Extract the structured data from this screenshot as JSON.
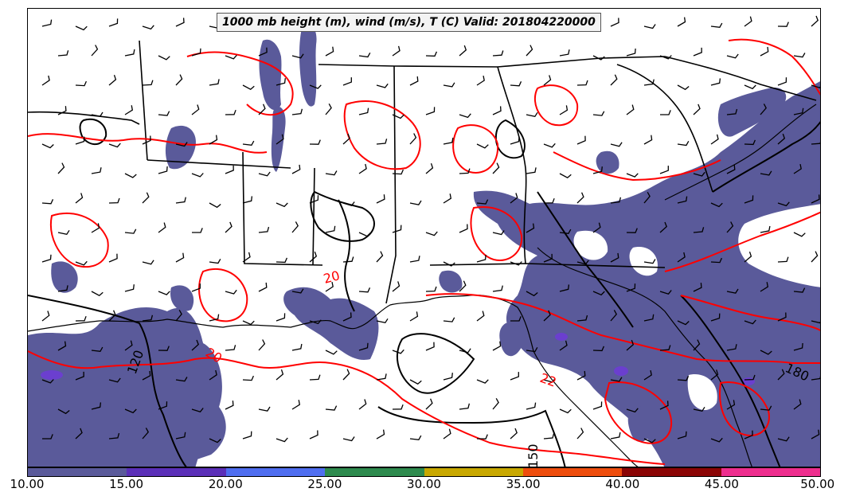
{
  "title": "1000 mb height (m), wind (m/s), T (C) Valid: 201804220000",
  "colorbar": {
    "ticks": [
      "10.00",
      "15.00",
      "20.00",
      "25.00",
      "30.00",
      "35.00",
      "40.00",
      "45.00",
      "50.00"
    ],
    "colors": [
      "#5a5a9a",
      "#5b2fb8",
      "#4f6ef0",
      "#2e8b4e",
      "#c8a800",
      "#ee4d0d",
      "#8b0505",
      "#ee2e8e"
    ]
  },
  "contour_labels": {
    "temperature": [
      "20",
      "20",
      "22"
    ],
    "height": [
      "120",
      "180",
      "150"
    ]
  },
  "colors": {
    "shading": "#5a5a9a",
    "shading_strong": "#6b3fcf",
    "temperature_contour": "#ff0000",
    "height_contour": "#000000",
    "borders": "#000000"
  }
}
